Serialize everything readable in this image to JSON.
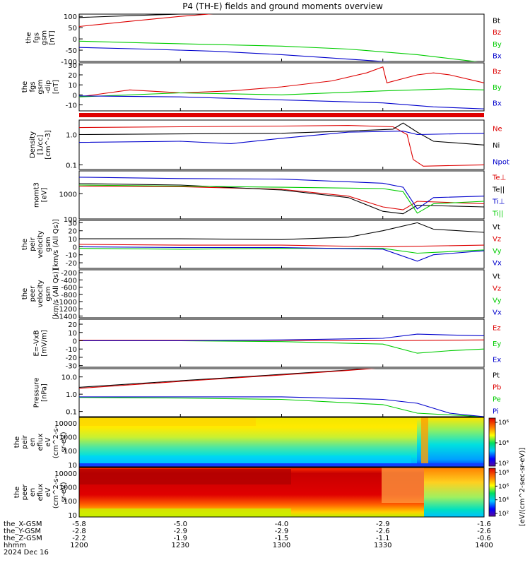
{
  "title": "P4 (TH-E) fields and ground moments overview",
  "colors": {
    "black": "#000000",
    "red": "#dd0000",
    "green": "#00cc00",
    "blue": "#0000cc"
  },
  "x_axis": {
    "ticks": [
      {
        "hhmm": "1200",
        "x": "-5.8",
        "y": "-2.8",
        "z": "-2.2"
      },
      {
        "hhmm": "1230",
        "x": "-5.0",
        "y": "-2.9",
        "z": "-1.9"
      },
      {
        "hhmm": "1300",
        "x": "-4.0",
        "y": "-2.9",
        "z": "-1.5"
      },
      {
        "hhmm": "1330",
        "x": "-2.9",
        "y": "-2.6",
        "z": "-1.1"
      },
      {
        "hhmm": "1400",
        "x": "-1.6",
        "y": "-2.6",
        "z": "-0.6"
      }
    ],
    "row_labels": [
      "the_X-GSM",
      "the_Y-GSM",
      "the_Z-GSM",
      "hhmm",
      "2024 Dec 16"
    ]
  },
  "colorbar": {
    "ticks_top": [
      "10^6",
      "10^4",
      "10^2"
    ],
    "ticks_bottom": [
      "10^8",
      "10^6",
      "10^4",
      "10^2"
    ],
    "label": "[eV/(cm^2-sec-sr-eV)]"
  },
  "chart_data": [
    {
      "type": "line",
      "ylabel": [
        "the",
        "fgs",
        "gsm",
        "[nT]"
      ],
      "yticks": [
        "100",
        "50",
        "0",
        "-50",
        "-100"
      ],
      "ylim": [
        -100,
        110
      ],
      "legend": [
        "Bt",
        "Bz",
        "By",
        "Bx"
      ],
      "series": [
        {
          "name": "Bt",
          "color": "black",
          "x": [
            12.0,
            12.25,
            12.5,
            12.75
          ],
          "y": [
            95,
            103,
            110,
            118
          ]
        },
        {
          "name": "Bz",
          "color": "red",
          "x": [
            12.0,
            12.25,
            12.5,
            12.75
          ],
          "y": [
            55,
            78,
            100,
            118
          ]
        },
        {
          "name": "By",
          "color": "green",
          "x": [
            12.0,
            12.33,
            12.67,
            13.0,
            13.33,
            13.67,
            14.0
          ],
          "y": [
            -10,
            -18,
            -25,
            -32,
            -45,
            -70,
            -105
          ]
        },
        {
          "name": "Bx",
          "color": "blue",
          "x": [
            12.0,
            12.33,
            12.67,
            13.0,
            13.25,
            13.5,
            14.0
          ],
          "y": [
            -38,
            -45,
            -55,
            -70,
            -85,
            -100,
            -120
          ]
        }
      ]
    },
    {
      "type": "line",
      "ylabel": [
        "the",
        "fgs",
        "gsm",
        "-dip",
        "[nT]"
      ],
      "yticks": [
        "30",
        "20",
        "10",
        "0",
        "-10"
      ],
      "ylim": [
        -16,
        32
      ],
      "legend": [
        "Bz",
        "By",
        "Bx"
      ],
      "series": [
        {
          "name": "Bz",
          "color": "red",
          "x": [
            12.0,
            12.25,
            12.5,
            12.75,
            13.0,
            13.25,
            13.42,
            13.5,
            13.52,
            13.67,
            13.75,
            13.83,
            14.0
          ],
          "y": [
            -2,
            5,
            2,
            4,
            8,
            14,
            22,
            28,
            12,
            20,
            22,
            20,
            12
          ]
        },
        {
          "name": "By",
          "color": "green",
          "x": [
            12.0,
            12.5,
            13.0,
            13.5,
            13.83,
            14.0
          ],
          "y": [
            -2,
            2,
            0,
            4,
            6,
            5
          ]
        },
        {
          "name": "Bx",
          "color": "blue",
          "x": [
            12.0,
            12.5,
            13.0,
            13.5,
            13.75,
            14.0
          ],
          "y": [
            -1,
            -2,
            -5,
            -8,
            -12,
            -14
          ]
        }
      ]
    },
    {
      "type": "line",
      "ylabel": [
        "Density",
        "[1/cc]",
        "[cm^-3]"
      ],
      "yticks": [
        "1.0",
        "0.1"
      ],
      "ylim": [
        0.07,
        3
      ],
      "yscale": "log",
      "legend": [
        "Ne",
        "Ni",
        "Npot"
      ],
      "series": [
        {
          "name": "Ne",
          "color": "red",
          "x": [
            12.0,
            12.5,
            13.0,
            13.33,
            13.55,
            13.62,
            13.65,
            13.7,
            14.0
          ],
          "y": [
            1.7,
            1.8,
            1.9,
            2.0,
            1.8,
            1.0,
            0.15,
            0.09,
            0.1
          ]
        },
        {
          "name": "Ni",
          "color": "black",
          "x": [
            12.0,
            12.5,
            13.0,
            13.33,
            13.55,
            13.6,
            13.67,
            13.75,
            14.0
          ],
          "y": [
            1.0,
            1.05,
            1.1,
            1.3,
            1.5,
            2.4,
            1.2,
            0.6,
            0.45
          ]
        },
        {
          "name": "Npot",
          "color": "blue",
          "x": [
            12.0,
            12.5,
            12.75,
            13.0,
            13.33,
            13.6,
            13.67,
            14.0
          ],
          "y": [
            0.55,
            0.6,
            0.5,
            0.75,
            1.2,
            1.3,
            1.0,
            1.1
          ]
        }
      ]
    },
    {
      "type": "line",
      "ylabel": [
        "momt3",
        "[eV]"
      ],
      "yticks": [
        "1000",
        "100"
      ],
      "ylim": [
        100,
        8000
      ],
      "yscale": "log",
      "legend": [
        "Te⊥",
        "Te||",
        "Ti⊥",
        "Ti||"
      ],
      "series": [
        {
          "name": "Te⊥",
          "color": "red",
          "x": [
            12.0,
            12.5,
            13.0,
            13.33,
            13.5,
            13.6,
            13.67,
            14.0
          ],
          "y": [
            2000,
            1900,
            1500,
            800,
            300,
            230,
            500,
            400
          ]
        },
        {
          "name": "Te||",
          "color": "black",
          "x": [
            12.0,
            12.5,
            13.0,
            13.33,
            13.5,
            13.6,
            13.67,
            14.0
          ],
          "y": [
            2500,
            2200,
            1400,
            700,
            200,
            160,
            350,
            300
          ]
        },
        {
          "name": "Ti⊥",
          "color": "blue",
          "x": [
            12.0,
            12.5,
            13.0,
            13.5,
            13.6,
            13.67,
            13.75,
            14.0
          ],
          "y": [
            4500,
            4000,
            3800,
            2600,
            1800,
            250,
            700,
            800
          ]
        },
        {
          "name": "Ti||",
          "color": "green",
          "x": [
            12.0,
            12.5,
            13.0,
            13.5,
            13.6,
            13.67,
            13.75,
            14.0
          ],
          "y": [
            2200,
            2000,
            1800,
            1600,
            1200,
            170,
            400,
            500
          ]
        }
      ]
    },
    {
      "type": "line",
      "ylabel": [
        "the",
        "peir",
        "velocity",
        "gsm",
        "[km/s (All Qs)]"
      ],
      "yticks": [
        "30",
        "20",
        "10",
        "0",
        "-10",
        "-20"
      ],
      "ylim": [
        -27,
        33
      ],
      "legend": [
        "Vt",
        "Vz",
        "Vy",
        "Vx"
      ],
      "series": [
        {
          "name": "Vt",
          "color": "black",
          "x": [
            12.0,
            12.5,
            13.0,
            13.33,
            13.5,
            13.67,
            13.75,
            14.0
          ],
          "y": [
            10,
            10,
            9,
            12,
            20,
            30,
            22,
            18
          ]
        },
        {
          "name": "Vz",
          "color": "red",
          "x": [
            12.0,
            12.5,
            13.0,
            13.5,
            14.0
          ],
          "y": [
            3,
            2,
            2,
            0,
            2
          ]
        },
        {
          "name": "Vy",
          "color": "green",
          "x": [
            12.0,
            12.5,
            13.0,
            13.5,
            13.67,
            14.0
          ],
          "y": [
            -2,
            -3,
            -2,
            -2,
            -8,
            -4
          ]
        },
        {
          "name": "Vx",
          "color": "blue",
          "x": [
            12.0,
            12.5,
            13.0,
            13.5,
            13.67,
            13.75,
            14.0
          ],
          "y": [
            0,
            -1,
            -1,
            -3,
            -18,
            -10,
            -5
          ]
        }
      ]
    },
    {
      "type": "line",
      "ylabel": [
        "the",
        "peer",
        "velocity",
        "gsm",
        "[km/s (All Qs)]"
      ],
      "yticks": [
        "-200",
        "-400",
        "-600",
        "-800",
        "-1000",
        "-1200",
        "-1400"
      ],
      "ylim": [
        -1450,
        -120
      ],
      "legend": [
        "Vt",
        "Vz",
        "Vy",
        "Vx"
      ],
      "series": []
    },
    {
      "type": "line",
      "ylabel": [
        "E=-VxB",
        "[mV/m]"
      ],
      "yticks": [
        "20",
        "10",
        "0",
        "-10",
        "-20",
        "-30"
      ],
      "ylim": [
        -32,
        26
      ],
      "legend": [
        "Ez",
        "Ey",
        "Ex"
      ],
      "series": [
        {
          "name": "Ez",
          "color": "red",
          "x": [
            12.0,
            13.0,
            13.5,
            14.0
          ],
          "y": [
            0.5,
            0.5,
            0,
            1
          ]
        },
        {
          "name": "Ey",
          "color": "green",
          "x": [
            12.0,
            12.5,
            13.0,
            13.5,
            13.67,
            13.83,
            14.0
          ],
          "y": [
            0,
            0,
            -1,
            -4,
            -15,
            -12,
            -10
          ]
        },
        {
          "name": "Ex",
          "color": "blue",
          "x": [
            12.0,
            12.5,
            13.0,
            13.5,
            13.67,
            13.83,
            14.0
          ],
          "y": [
            0,
            0,
            1,
            3,
            8,
            7,
            6
          ]
        }
      ]
    },
    {
      "type": "line",
      "ylabel": [
        "Pressure",
        "[nPa]"
      ],
      "yticks": [
        "10.0",
        "1.0",
        "0.1"
      ],
      "ylim": [
        0.05,
        30
      ],
      "yscale": "log",
      "legend": [
        "Pt",
        "Pb",
        "Pe",
        "Pi"
      ],
      "series": [
        {
          "name": "Pt",
          "color": "black",
          "x": [
            12.0,
            12.5,
            13.0,
            13.33,
            13.5
          ],
          "y": [
            2.5,
            6,
            14,
            25,
            35
          ]
        },
        {
          "name": "Pb",
          "color": "red",
          "x": [
            12.0,
            12.5,
            13.0,
            13.33,
            13.5
          ],
          "y": [
            2.2,
            5.5,
            13,
            24,
            34
          ]
        },
        {
          "name": "Pe",
          "color": "green",
          "x": [
            12.0,
            12.5,
            13.0,
            13.5,
            13.67,
            14.0
          ],
          "y": [
            0.65,
            0.6,
            0.5,
            0.25,
            0.08,
            0.05
          ]
        },
        {
          "name": "Pi",
          "color": "blue",
          "x": [
            12.0,
            12.5,
            13.0,
            13.5,
            13.67,
            13.83,
            14.0
          ],
          "y": [
            0.7,
            0.7,
            0.7,
            0.5,
            0.3,
            0.08,
            0.05
          ]
        }
      ]
    },
    {
      "type": "heatmap",
      "ylabel": [
        "the",
        "peir",
        "en",
        "eflux",
        "eV",
        "(cm^2-s-",
        "sr-eV)"
      ],
      "yticks": [
        "10000",
        "1000",
        "100",
        "10"
      ],
      "ylim": [
        7,
        25000
      ],
      "yscale": "log"
    },
    {
      "type": "heatmap",
      "ylabel": [
        "the",
        "peer",
        "en",
        "eflux",
        "eV",
        "(cm^2-s-",
        "sr-eV)"
      ],
      "yticks": [
        "10000",
        "1000",
        "100",
        "10"
      ],
      "ylim": [
        7,
        25000
      ],
      "yscale": "log"
    }
  ]
}
